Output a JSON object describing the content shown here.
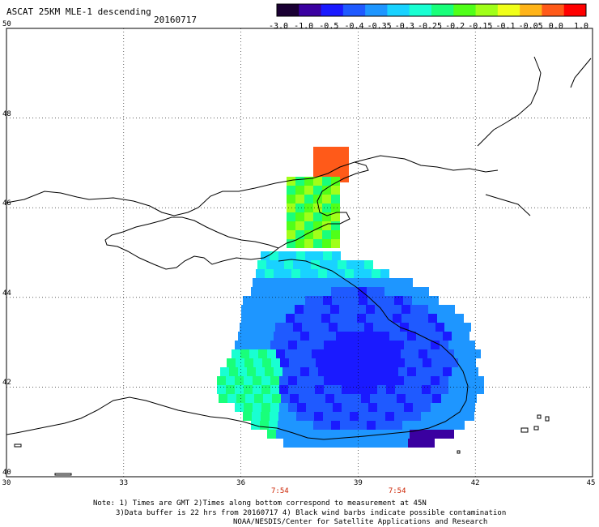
{
  "header": {
    "title": "ASCAT 25KM MLE-1 descending",
    "date": "20160717"
  },
  "colorbar": {
    "labels": [
      "-3.0",
      "-1.0",
      "-0.5",
      "-0.4",
      "-0.35",
      "-0.3",
      "-0.25",
      "-0.2",
      "-0.15",
      "-0.1",
      "-0.05",
      "0.0",
      "1.0"
    ],
    "colors": [
      "#1a0033",
      "#3a00a0",
      "#1a1aff",
      "#1f5aff",
      "#1e96ff",
      "#19d2ff",
      "#19ffd2",
      "#19ff7a",
      "#50ff19",
      "#a0ff19",
      "#f0ff19",
      "#ffb419",
      "#ff5a19",
      "#ff0000"
    ]
  },
  "axes": {
    "lat_labels": [
      "50",
      "48",
      "46",
      "44",
      "42",
      "40"
    ],
    "lon_labels": [
      "30",
      "33",
      "36",
      "39",
      "42",
      "45"
    ],
    "lat_range": [
      40,
      50
    ],
    "lon_range": [
      30,
      45
    ]
  },
  "time_labels": [
    {
      "text": "7:54",
      "lon": 37
    },
    {
      "text": "7:54",
      "lon": 40
    }
  ],
  "notes": {
    "line1": "Note: 1) Times are GMT 2)Times along bottom correspond to measurement at 45N",
    "line2": "3)Data buffer is 22 hrs from 20160717 4) Black wind barbs indicate possible contamination",
    "line3": "NOAA/NESDIS/Center for Satellite Applications and Research"
  }
}
